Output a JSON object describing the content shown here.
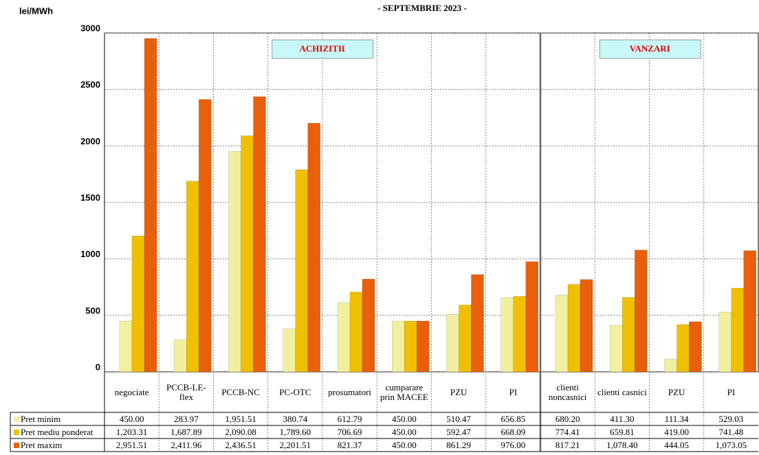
{
  "chart_data": {
    "type": "bar",
    "title": "- SEPTEMBRIE 2023 -",
    "y_label": "lei/MWh",
    "annotations": [
      "ACHIZITII",
      "VANZARI"
    ],
    "categories": [
      "negociate",
      "PCCB-LE-flex",
      "PCCB-NC",
      "PC-OTC",
      "prosumatori",
      "cumparare prin MACEE",
      "PZU",
      "PI",
      "clienti noncasnici",
      "clienti casnici",
      "PZU",
      "PI"
    ],
    "series": [
      {
        "name": "Pret minim",
        "color": "#f2f0a0",
        "values": [
          450.0,
          283.97,
          1951.51,
          380.74,
          612.79,
          450.0,
          510.47,
          656.85,
          680.2,
          411.3,
          111.34,
          529.03
        ],
        "value_labels": [
          "450.00",
          "283.97",
          "1,951.51",
          "380.74",
          "612.79",
          "450.00",
          "510.47",
          "656.85",
          "680.20",
          "411.30",
          "111.34",
          "529.03"
        ]
      },
      {
        "name": "Pret mediu ponderat",
        "color": "#f0c000",
        "values": [
          1203.31,
          1687.89,
          2090.08,
          1789.6,
          706.69,
          450.0,
          592.47,
          668.09,
          774.41,
          659.81,
          419.0,
          741.48
        ],
        "value_labels": [
          "1,203.31",
          "1,687.89",
          "2,090.08",
          "1,789.60",
          "706.69",
          "450.00",
          "592.47",
          "668.09",
          "774.41",
          "659.81",
          "419.00",
          "741.48"
        ]
      },
      {
        "name": "Pret maxim",
        "color": "#e8600c",
        "values": [
          2951.51,
          2411.96,
          2436.51,
          2201.51,
          821.37,
          450.0,
          861.29,
          976.0,
          817.21,
          1078.4,
          444.05,
          1073.05
        ],
        "value_labels": [
          "2,951.51",
          "2,411.96",
          "2,436.51",
          "2,201.51",
          "821.37",
          "450.00",
          "861.29",
          "976.00",
          "817.21",
          "1,078.40",
          "444.05",
          "1,073.05"
        ]
      }
    ],
    "ylim": [
      0,
      3000
    ],
    "yticks": [
      0,
      500,
      1000,
      1500,
      2000,
      2500,
      3000
    ],
    "grid": true
  }
}
